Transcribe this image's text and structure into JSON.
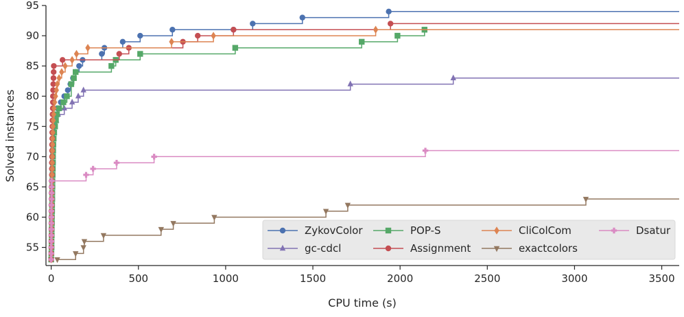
{
  "chart_data": {
    "type": "line",
    "title": "",
    "xlabel": "CPU time (s)",
    "ylabel": "Solved instances",
    "xlim": [
      -30,
      3600
    ],
    "ylim": [
      52,
      95
    ],
    "x_ticks": [
      0,
      500,
      1000,
      1500,
      2000,
      2500,
      3000,
      3500
    ],
    "y_ticks": [
      55,
      60,
      65,
      70,
      75,
      80,
      85,
      90,
      95
    ],
    "x_tick_labels": [
      "0",
      "500",
      "1000",
      "1500",
      "2000",
      "2500",
      "3000",
      "3500"
    ],
    "y_tick_labels": [
      "55",
      "60",
      "65",
      "70",
      "75",
      "80",
      "85",
      "90",
      "95"
    ],
    "legend_position": "bottom-right",
    "series": [
      {
        "name": "ZykovColor",
        "color": "#4c72b0",
        "marker": "circle",
        "points": [
          [
            0,
            53
          ],
          [
            1,
            54
          ],
          [
            2,
            55
          ],
          [
            2,
            56
          ],
          [
            3,
            57
          ],
          [
            3,
            58
          ],
          [
            4,
            59
          ],
          [
            4,
            60
          ],
          [
            5,
            61
          ],
          [
            5,
            62
          ],
          [
            6,
            63
          ],
          [
            6,
            64
          ],
          [
            7,
            65
          ],
          [
            7,
            66
          ],
          [
            8,
            67
          ],
          [
            9,
            68
          ],
          [
            10,
            69
          ],
          [
            10,
            70
          ],
          [
            11,
            71
          ],
          [
            12,
            72
          ],
          [
            13,
            73
          ],
          [
            15,
            74
          ],
          [
            17,
            75
          ],
          [
            20,
            76
          ],
          [
            25,
            77
          ],
          [
            35,
            78
          ],
          [
            55,
            79
          ],
          [
            75,
            80
          ],
          [
            95,
            81
          ],
          [
            110,
            82
          ],
          [
            125,
            83
          ],
          [
            140,
            84
          ],
          [
            160,
            85
          ],
          [
            180,
            86
          ],
          [
            290,
            87
          ],
          [
            305,
            88
          ],
          [
            410,
            89
          ],
          [
            510,
            90
          ],
          [
            695,
            91
          ],
          [
            1045,
            91
          ],
          [
            1155,
            92
          ],
          [
            1440,
            93
          ],
          [
            1935,
            94
          ]
        ]
      },
      {
        "name": "gc-cdcl",
        "color": "#8172b3",
        "marker": "triangle-up",
        "points": [
          [
            0,
            53
          ],
          [
            1,
            54
          ],
          [
            2,
            55
          ],
          [
            2,
            56
          ],
          [
            3,
            57
          ],
          [
            3,
            58
          ],
          [
            4,
            59
          ],
          [
            4,
            60
          ],
          [
            5,
            61
          ],
          [
            5,
            62
          ],
          [
            6,
            63
          ],
          [
            6,
            64
          ],
          [
            7,
            65
          ],
          [
            8,
            66
          ],
          [
            9,
            67
          ],
          [
            10,
            68
          ],
          [
            10,
            69
          ],
          [
            11,
            70
          ],
          [
            12,
            71
          ],
          [
            13,
            72
          ],
          [
            15,
            73
          ],
          [
            18,
            74
          ],
          [
            22,
            75
          ],
          [
            30,
            76
          ],
          [
            40,
            77
          ],
          [
            75,
            78
          ],
          [
            120,
            79
          ],
          [
            155,
            80
          ],
          [
            185,
            81
          ],
          [
            1715,
            82
          ],
          [
            2305,
            83
          ]
        ]
      },
      {
        "name": "POP-S",
        "color": "#55a868",
        "marker": "square",
        "points": [
          [
            0,
            53
          ],
          [
            1,
            54
          ],
          [
            2,
            55
          ],
          [
            2,
            56
          ],
          [
            3,
            57
          ],
          [
            3,
            58
          ],
          [
            4,
            59
          ],
          [
            4,
            60
          ],
          [
            5,
            61
          ],
          [
            5,
            62
          ],
          [
            6,
            63
          ],
          [
            6,
            64
          ],
          [
            7,
            65
          ],
          [
            7,
            66
          ],
          [
            8,
            67
          ],
          [
            9,
            68
          ],
          [
            10,
            69
          ],
          [
            10,
            70
          ],
          [
            11,
            71
          ],
          [
            12,
            72
          ],
          [
            14,
            73
          ],
          [
            17,
            74
          ],
          [
            22,
            75
          ],
          [
            27,
            76
          ],
          [
            33,
            77
          ],
          [
            45,
            78
          ],
          [
            70,
            79
          ],
          [
            90,
            80
          ],
          [
            115,
            82
          ],
          [
            130,
            83
          ],
          [
            140,
            84
          ],
          [
            345,
            85
          ],
          [
            370,
            86
          ],
          [
            510,
            87
          ],
          [
            1055,
            88
          ],
          [
            1780,
            89
          ],
          [
            1985,
            90
          ],
          [
            2140,
            91
          ]
        ]
      },
      {
        "name": "Assignment",
        "color": "#c44e52",
        "marker": "circle",
        "points": [
          [
            0,
            53
          ],
          [
            1,
            54
          ],
          [
            1,
            55
          ],
          [
            1,
            56
          ],
          [
            1,
            57
          ],
          [
            2,
            58
          ],
          [
            2,
            59
          ],
          [
            2,
            60
          ],
          [
            2,
            61
          ],
          [
            3,
            62
          ],
          [
            3,
            63
          ],
          [
            3,
            64
          ],
          [
            3,
            65
          ],
          [
            4,
            66
          ],
          [
            4,
            67
          ],
          [
            4,
            68
          ],
          [
            4,
            69
          ],
          [
            5,
            70
          ],
          [
            5,
            71
          ],
          [
            5,
            72
          ],
          [
            6,
            73
          ],
          [
            6,
            74
          ],
          [
            7,
            75
          ],
          [
            7,
            76
          ],
          [
            8,
            77
          ],
          [
            9,
            78
          ],
          [
            10,
            79
          ],
          [
            10,
            80
          ],
          [
            11,
            81
          ],
          [
            12,
            82
          ],
          [
            13,
            83
          ],
          [
            14,
            84
          ],
          [
            15,
            85
          ],
          [
            65,
            86
          ],
          [
            390,
            87
          ],
          [
            445,
            88
          ],
          [
            755,
            89
          ],
          [
            840,
            90
          ],
          [
            1045,
            91
          ],
          [
            1945,
            92
          ]
        ]
      },
      {
        "name": "CliColCom",
        "color": "#dd8452",
        "marker": "diamond",
        "points": [
          [
            0,
            53
          ],
          [
            1,
            54
          ],
          [
            1,
            55
          ],
          [
            2,
            56
          ],
          [
            2,
            57
          ],
          [
            2,
            58
          ],
          [
            3,
            59
          ],
          [
            3,
            60
          ],
          [
            3,
            61
          ],
          [
            4,
            62
          ],
          [
            4,
            63
          ],
          [
            4,
            64
          ],
          [
            5,
            65
          ],
          [
            5,
            66
          ],
          [
            5,
            67
          ],
          [
            6,
            68
          ],
          [
            6,
            69
          ],
          [
            7,
            70
          ],
          [
            7,
            71
          ],
          [
            8,
            72
          ],
          [
            8,
            73
          ],
          [
            9,
            74
          ],
          [
            10,
            75
          ],
          [
            12,
            76
          ],
          [
            14,
            77
          ],
          [
            16,
            78
          ],
          [
            20,
            79
          ],
          [
            25,
            80
          ],
          [
            30,
            81
          ],
          [
            35,
            82
          ],
          [
            45,
            83
          ],
          [
            60,
            84
          ],
          [
            80,
            85
          ],
          [
            120,
            86
          ],
          [
            145,
            87
          ],
          [
            210,
            88
          ],
          [
            690,
            89
          ],
          [
            930,
            90
          ],
          [
            1860,
            91
          ]
        ]
      },
      {
        "name": "exactcolors",
        "color": "#937860",
        "marker": "triangle-down",
        "points": [
          [
            35,
            53
          ],
          [
            140,
            54
          ],
          [
            185,
            55
          ],
          [
            190,
            56
          ],
          [
            300,
            57
          ],
          [
            630,
            58
          ],
          [
            700,
            59
          ],
          [
            935,
            60
          ],
          [
            1575,
            61
          ],
          [
            1700,
            62
          ],
          [
            3065,
            63
          ]
        ]
      },
      {
        "name": "Dsatur",
        "color": "#da8bc3",
        "marker": "plus",
        "points": [
          [
            0,
            53
          ],
          [
            0,
            54
          ],
          [
            0,
            55
          ],
          [
            1,
            56
          ],
          [
            1,
            57
          ],
          [
            1,
            58
          ],
          [
            1,
            59
          ],
          [
            1,
            60
          ],
          [
            1,
            61
          ],
          [
            1,
            62
          ],
          [
            2,
            63
          ],
          [
            2,
            64
          ],
          [
            2,
            65
          ],
          [
            2,
            66
          ],
          [
            200,
            67
          ],
          [
            240,
            68
          ],
          [
            375,
            69
          ],
          [
            590,
            70
          ],
          [
            2145,
            71
          ]
        ]
      }
    ],
    "legend_entries": [
      {
        "label": "ZykovColor",
        "series": 0
      },
      {
        "label": "POP-S",
        "series": 2
      },
      {
        "label": "CliColCom",
        "series": 4
      },
      {
        "label": "Dsatur",
        "series": 6
      },
      {
        "label": "gc-cdcl",
        "series": 1
      },
      {
        "label": "Assignment",
        "series": 3
      },
      {
        "label": "exactcolors",
        "series": 5
      }
    ]
  }
}
